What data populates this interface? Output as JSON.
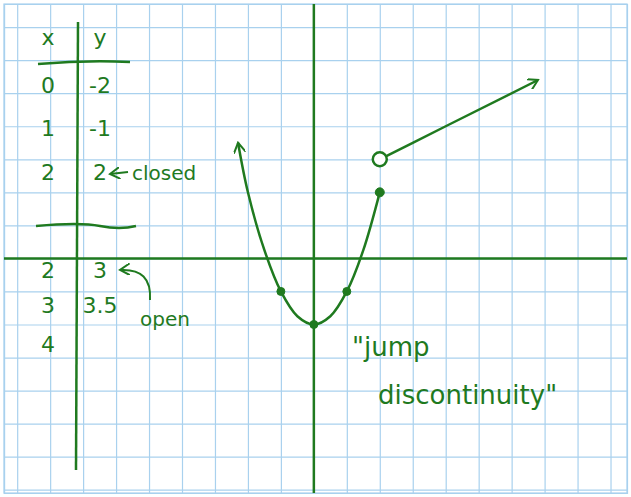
{
  "chart_data": {
    "type": "line",
    "xlim": [
      -9.4,
      9.5
    ],
    "ylim": [
      -7.1,
      7.7
    ],
    "xticks": [
      -9,
      -8,
      -7,
      -6,
      -5,
      -4,
      -3,
      -2,
      -1,
      0,
      1,
      2,
      3,
      4,
      5,
      6,
      7,
      8,
      9
    ],
    "yticks": [
      -7,
      -6,
      -5,
      -4,
      -3,
      -2,
      -1,
      0,
      1,
      2,
      3,
      4,
      5,
      6,
      7
    ],
    "grid": true,
    "tick_labels": false,
    "annotations": [
      "closed",
      "open",
      "\"jump discontinuity\""
    ],
    "series": [
      {
        "type": "line",
        "color": "#1f7a1f",
        "marker": "closed",
        "x": [
          -2.3,
          -2,
          -1.5,
          -1,
          -0.5,
          0,
          0.5,
          1,
          1.5,
          2
        ],
        "values": [
          3.5,
          2,
          0.25,
          -1,
          -1.75,
          -2,
          -1.75,
          -1,
          0.25,
          2
        ]
      },
      {
        "type": "line",
        "color": "#1f7a1f",
        "marker": "open",
        "x": [
          2,
          3,
          4,
          6.8
        ],
        "values": [
          3,
          3.5,
          4,
          5.4
        ]
      },
      {
        "type": "scatter",
        "color": "#1f7a1f",
        "marker": "dot",
        "x": [
          -1,
          0,
          1
        ],
        "values": [
          -1,
          -2,
          -1
        ]
      }
    ]
  },
  "table": {
    "columns": [
      "x",
      "y"
    ],
    "rows": [
      [
        0,
        -2
      ],
      [
        1,
        -1
      ],
      [
        2,
        2
      ],
      [
        2,
        3
      ],
      [
        3,
        3.5
      ],
      [
        4,
        null
      ]
    ]
  }
}
